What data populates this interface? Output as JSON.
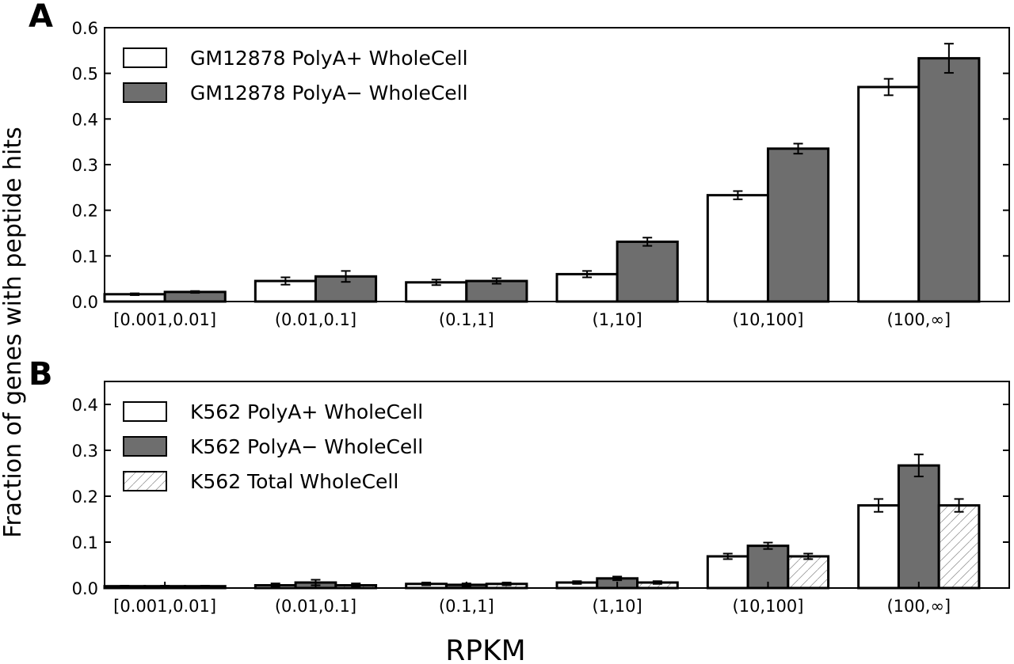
{
  "chart_data": [
    {
      "panel": "A",
      "type": "bar",
      "categories": [
        "[0.001,0.01]",
        "(0.01,0.1]",
        "(0.1,1]",
        "(1,10]",
        "(10,100]",
        "(100,∞]"
      ],
      "ylim": [
        0,
        0.6
      ],
      "yticks": [
        "0.0",
        "0.1",
        "0.2",
        "0.3",
        "0.4",
        "0.5",
        "0.6"
      ],
      "ytick_values": [
        0,
        0.1,
        0.2,
        0.3,
        0.4,
        0.5,
        0.6
      ],
      "legend_position": "top-left",
      "series": [
        {
          "name": "GM12878 PolyA+ WholeCell",
          "fill": "#ffffff",
          "hatch": false,
          "values": [
            0.016,
            0.045,
            0.042,
            0.06,
            0.233,
            0.47
          ],
          "errors": [
            0.002,
            0.008,
            0.006,
            0.007,
            0.009,
            0.018
          ]
        },
        {
          "name": "GM12878 PolyA− WholeCell",
          "fill": "#6e6e6e",
          "hatch": false,
          "values": [
            0.021,
            0.055,
            0.045,
            0.131,
            0.335,
            0.533
          ],
          "errors": [
            0.002,
            0.012,
            0.006,
            0.009,
            0.011,
            0.032
          ]
        }
      ]
    },
    {
      "panel": "B",
      "type": "bar",
      "categories": [
        "[0.001,0.01]",
        "(0.01,0.1]",
        "(0.1,1]",
        "(1,10]",
        "(10,100]",
        "(100,∞]"
      ],
      "ylim": [
        0,
        0.45
      ],
      "yticks": [
        "0.0",
        "0.1",
        "0.2",
        "0.3",
        "0.4"
      ],
      "ytick_values": [
        0,
        0.1,
        0.2,
        0.3,
        0.4
      ],
      "legend_position": "top-left",
      "series": [
        {
          "name": "K562 PolyA+ WholeCell",
          "fill": "#ffffff",
          "hatch": false,
          "values": [
            0.004,
            0.006,
            0.009,
            0.012,
            0.069,
            0.18
          ],
          "errors": [
            0.001,
            0.004,
            0.003,
            0.003,
            0.006,
            0.014
          ]
        },
        {
          "name": "K562 PolyA− WholeCell",
          "fill": "#6e6e6e",
          "hatch": false,
          "values": [
            0.004,
            0.012,
            0.007,
            0.021,
            0.092,
            0.267
          ],
          "errors": [
            0.001,
            0.006,
            0.003,
            0.004,
            0.007,
            0.024
          ]
        },
        {
          "name": "K562 Total WholeCell",
          "fill": "#ffffff",
          "hatch": true,
          "values": [
            0.004,
            0.006,
            0.009,
            0.012,
            0.069,
            0.18
          ],
          "errors": [
            0.001,
            0.004,
            0.003,
            0.003,
            0.006,
            0.014
          ]
        }
      ]
    }
  ],
  "ylabel": "Fraction of genes with peptide hits",
  "xlabel": "RPKM",
  "panel_labels": [
    "A",
    "B"
  ]
}
